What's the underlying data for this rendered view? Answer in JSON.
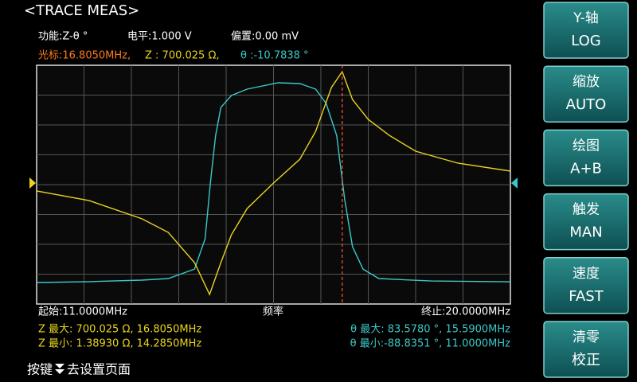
{
  "header": {
    "title": "<TRACE MEAS>",
    "status": [
      "功能:Z-θ °",
      "电平:1.000 V",
      "偏置:0.00 mV"
    ],
    "marker": {
      "freq": "光标:16.8050MHz,",
      "z": "Z : 700.025 Ω,",
      "theta": "θ :-10.7838 °"
    }
  },
  "axis": {
    "start": "起始:11.0000MHz",
    "label": "频率",
    "stop": "终止:20.0000MHz"
  },
  "stats": {
    "z_max": "Z 最大: 700.025 Ω, 16.8050MHz",
    "z_min": "Z 最小: 1.38930 Ω, 14.2850MHz",
    "theta_max": "θ 最大: 83.5780 °, 15.5900MHz",
    "theta_min": "θ 最小:-88.8351 °, 11.0000MHz"
  },
  "footer": {
    "prefix": "按键",
    "suffix": "去设置页面"
  },
  "softkeys": [
    {
      "title": "Y-轴",
      "value": "LOG"
    },
    {
      "title": "缩放",
      "value": "AUTO"
    },
    {
      "title": "绘图",
      "value": "A+B"
    },
    {
      "title": "触发",
      "value": "MAN"
    },
    {
      "title": "速度",
      "value": "FAST"
    },
    {
      "title": "清零",
      "value": "校正"
    }
  ],
  "trace": {
    "xlim": [
      11,
      20
    ],
    "marker_x": 16.805,
    "log_z": true,
    "z": {
      "color": "#e8d420",
      "x": [
        11.0,
        12.0,
        13.0,
        13.5,
        14.0,
        14.285,
        14.5,
        14.7,
        15.0,
        15.5,
        16.0,
        16.3,
        16.6,
        16.805,
        17.0,
        17.3,
        17.7,
        18.2,
        19.0,
        20.0
      ],
      "values": [
        25.0,
        19.1,
        11.5,
        7.87,
        3.38,
        1.3893,
        3.38,
        7.36,
        15.3,
        31.2,
        60.7,
        132,
        449,
        700.025,
        321,
        184,
        118,
        75.9,
        54.3,
        43.5
      ]
    },
    "theta": {
      "color": "#3cc8c8",
      "x": [
        11.0,
        12.0,
        13.0,
        13.5,
        14.0,
        14.2,
        14.3,
        14.4,
        14.5,
        14.7,
        15.0,
        15.59,
        16.0,
        16.3,
        16.5,
        16.7,
        16.85,
        17.0,
        17.2,
        17.5,
        18.5,
        20.0
      ],
      "values": [
        -88.8351,
        -88.1,
        -86.8,
        -85.4,
        -77.2,
        -51.1,
        -3.0,
        38.2,
        62.3,
        72.6,
        78.1,
        83.578,
        82.9,
        78.1,
        65.7,
        38.2,
        -16.7,
        -57.9,
        -77.2,
        -85.4,
        -87.5,
        -88.2
      ]
    }
  }
}
